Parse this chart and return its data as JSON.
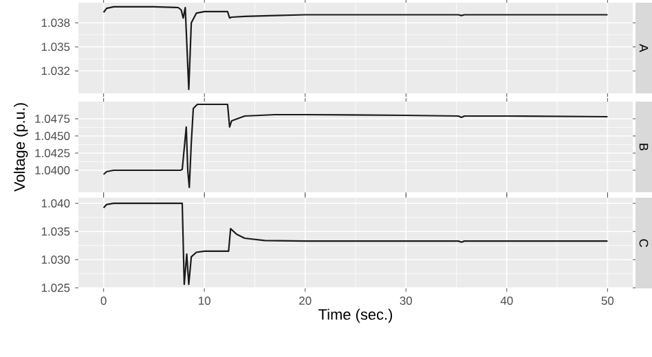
{
  "chart_data": [
    {
      "type": "line",
      "annotations": [
        "A"
      ],
      "color": "#1a1a1a",
      "grid": true,
      "tick_labels": "y",
      "xlim": [
        -2.5,
        52.5
      ],
      "xticks": [
        0,
        10,
        20,
        30,
        40,
        50
      ],
      "ylim": [
        1.0292,
        1.0405
      ],
      "yticks": [
        1.032,
        1.035,
        1.038
      ],
      "x": [
        0,
        0.3,
        1,
        5,
        7.4,
        7.7,
        7.9,
        8.1,
        8.45,
        8.7,
        9.2,
        10,
        12.3,
        12.5,
        12.7,
        14,
        17,
        20,
        25,
        30,
        35.2,
        35.5,
        35.8,
        40,
        45,
        50
      ],
      "values": [
        1.0393,
        1.0398,
        1.04,
        1.04,
        1.0399,
        1.0396,
        1.0386,
        1.0399,
        1.0297,
        1.038,
        1.0392,
        1.0394,
        1.0394,
        1.0386,
        1.0387,
        1.0388,
        1.0389,
        1.039,
        1.039,
        1.039,
        1.039,
        1.0389,
        1.039,
        1.039,
        1.039,
        1.039
      ]
    },
    {
      "type": "line",
      "annotations": [
        "B"
      ],
      "ylabel": "Voltage (p.u.)",
      "color": "#1a1a1a",
      "grid": true,
      "tick_labels": "y",
      "xlim": [
        -2.5,
        52.5
      ],
      "xticks": [
        0,
        10,
        20,
        30,
        40,
        50
      ],
      "ylim": [
        1.0368,
        1.05
      ],
      "yticks": [
        {
          "value": 1.04,
          "label": "1.0400"
        },
        1.0425,
        {
          "value": 1.045,
          "label": "1.0450"
        },
        1.0475
      ],
      "x": [
        0,
        0.3,
        1,
        7.6,
        7.8,
        8.2,
        8.35,
        8.5,
        8.7,
        8.9,
        9.3,
        12.3,
        12.5,
        12.7,
        14,
        17,
        20,
        30,
        35.2,
        35.5,
        35.8,
        40,
        50
      ],
      "values": [
        1.0394,
        1.0398,
        1.04,
        1.04,
        1.0401,
        1.0463,
        1.04,
        1.0375,
        1.044,
        1.049,
        1.0496,
        1.0496,
        1.0463,
        1.0472,
        1.0479,
        1.0481,
        1.0481,
        1.048,
        1.0479,
        1.0477,
        1.0479,
        1.0479,
        1.0478
      ]
    },
    {
      "type": "line",
      "annotations": [
        "C"
      ],
      "xlabel": "Time (sec.)",
      "color": "#1a1a1a",
      "grid": true,
      "xlim": [
        -2.5,
        52.5
      ],
      "xticks": [
        0,
        10,
        20,
        30,
        40,
        50
      ],
      "ylim": [
        1.0249,
        1.041
      ],
      "yticks": [
        1.025,
        {
          "value": 1.03,
          "label": "1.030"
        },
        1.035,
        {
          "value": 1.04,
          "label": "1.040"
        }
      ],
      "x": [
        0,
        0.3,
        1,
        7.8,
        8.0,
        8.25,
        8.45,
        8.7,
        9.2,
        10,
        12.4,
        12.6,
        13.2,
        14,
        16,
        20,
        30,
        35.2,
        35.5,
        35.8,
        40,
        50
      ],
      "values": [
        1.0392,
        1.0398,
        1.04,
        1.04,
        1.0256,
        1.031,
        1.0256,
        1.0305,
        1.0313,
        1.0315,
        1.0315,
        1.0355,
        1.0345,
        1.0338,
        1.0334,
        1.0333,
        1.0333,
        1.0333,
        1.0331,
        1.0333,
        1.0333,
        1.0333
      ]
    }
  ]
}
